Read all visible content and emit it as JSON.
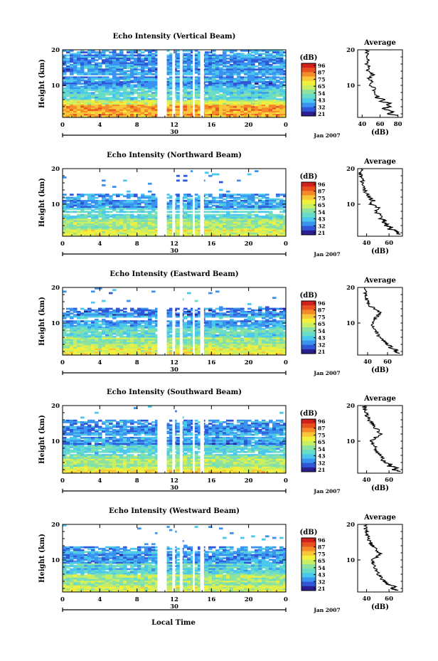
{
  "figure": {
    "xlabel": "Local Time",
    "date_label": "Jan 2007",
    "day_label": "30"
  },
  "colorbar": {
    "unit": "(dB)",
    "ticks": [
      "96",
      "87",
      "75",
      "65",
      "54",
      "43",
      "32",
      "21"
    ],
    "colors": [
      "#2b1f8f",
      "#2f57d6",
      "#3b93f0",
      "#4bc7ee",
      "#69dcc9",
      "#8ee2a0",
      "#c8ee64",
      "#f2f03c",
      "#f8c636",
      "#f48a2a",
      "#e85020",
      "#d2201c"
    ]
  },
  "chart_data": [
    {
      "type": "heatmap",
      "title": "Echo Intensity (Vertical Beam)",
      "ylabel": "Height (km)",
      "x_ticks": [
        "0",
        "4",
        "8",
        "12",
        "16",
        "20",
        "0"
      ],
      "y_ticks": [
        "20",
        "10"
      ],
      "xlim": [
        0,
        24
      ],
      "ylim": [
        1,
        20
      ],
      "gaps_hours": [
        [
          10.2,
          11.2
        ],
        [
          11.8,
          12.1
        ],
        [
          12.6,
          12.9
        ],
        [
          14.0,
          14.2
        ],
        [
          14.8,
          15.2
        ]
      ],
      "cloud_top_km": 20,
      "strong_layer_km": [
        2,
        5
      ],
      "profile": {
        "title": "Average",
        "xlabel": "(dB)",
        "x_ticks": [
          "40",
          "60",
          "80"
        ],
        "xlim": [
          35,
          85
        ],
        "y_ticks": [
          "20",
          "10"
        ],
        "height_km": [
          1.5,
          2,
          2.5,
          3,
          3.5,
          4,
          4.5,
          5,
          5.5,
          6,
          6.5,
          7,
          8,
          9,
          10,
          11,
          12,
          13,
          14,
          15,
          16,
          17,
          18,
          19,
          20
        ],
        "db": [
          80,
          68,
          75,
          70,
          62,
          72,
          66,
          72,
          60,
          66,
          55,
          58,
          52,
          54,
          50,
          51,
          48,
          52,
          46,
          48,
          45,
          47,
          44,
          46,
          45
        ]
      }
    },
    {
      "type": "heatmap",
      "title": "Echo Intensity (Northward Beam)",
      "ylabel": "Height (km)",
      "x_ticks": [
        "0",
        "4",
        "8",
        "12",
        "16",
        "20",
        "0"
      ],
      "y_ticks": [
        "20",
        "10"
      ],
      "xlim": [
        0,
        24
      ],
      "ylim": [
        1,
        20
      ],
      "gaps_hours": [
        [
          10.2,
          11.2
        ],
        [
          11.8,
          12.1
        ],
        [
          12.6,
          12.9
        ],
        [
          14.0,
          14.2
        ],
        [
          14.8,
          15.2
        ]
      ],
      "cloud_top_km": 13,
      "strong_layer_km": [
        1,
        3
      ],
      "profile": {
        "title": "Average",
        "xlabel": "(dB)",
        "x_ticks": [
          "40",
          "60"
        ],
        "xlim": [
          32,
          72
        ],
        "y_ticks": [
          "20",
          "10"
        ],
        "height_km": [
          1.5,
          2,
          2.5,
          3,
          3.5,
          4,
          4.5,
          5,
          5.5,
          6,
          7,
          8,
          9,
          10,
          11,
          12,
          13,
          14,
          15,
          16,
          17,
          18,
          19,
          20
        ],
        "db": [
          70,
          66,
          68,
          60,
          62,
          57,
          58,
          55,
          56,
          52,
          52,
          48,
          50,
          44,
          46,
          42,
          40,
          38,
          37,
          36,
          36,
          35,
          35,
          35
        ]
      }
    },
    {
      "type": "heatmap",
      "title": "Echo Intensity (Eastward Beam)",
      "ylabel": "Height (km)",
      "x_ticks": [
        "0",
        "4",
        "8",
        "12",
        "16",
        "20",
        "0"
      ],
      "y_ticks": [
        "20",
        "10"
      ],
      "xlim": [
        0,
        24
      ],
      "ylim": [
        1,
        20
      ],
      "gaps_hours": [
        [
          10.2,
          11.2
        ],
        [
          11.8,
          12.1
        ],
        [
          12.6,
          12.9
        ],
        [
          14.0,
          14.2
        ],
        [
          14.8,
          15.2
        ]
      ],
      "cloud_top_km": 14.5,
      "strong_layer_km": [
        1,
        3
      ],
      "profile": {
        "title": "Average",
        "xlabel": "(dB)",
        "x_ticks": [
          "40",
          "60"
        ],
        "xlim": [
          30,
          75
        ],
        "y_ticks": [
          "20",
          "10"
        ],
        "height_km": [
          1.5,
          2,
          2.5,
          3,
          3.5,
          4,
          4.5,
          5,
          6,
          7,
          8,
          9,
          10,
          11,
          12,
          13,
          14,
          15,
          16,
          17,
          18,
          19,
          20
        ],
        "db": [
          72,
          66,
          70,
          62,
          64,
          58,
          60,
          56,
          52,
          50,
          48,
          46,
          44,
          46,
          50,
          52,
          47,
          42,
          40,
          39,
          38,
          37,
          37
        ]
      }
    },
    {
      "type": "heatmap",
      "title": "Echo Intensity (Southward Beam)",
      "ylabel": "Height (km)",
      "x_ticks": [
        "0",
        "4",
        "8",
        "12",
        "16",
        "20",
        "0"
      ],
      "y_ticks": [
        "20",
        "10"
      ],
      "xlim": [
        0,
        24
      ],
      "ylim": [
        1,
        20
      ],
      "gaps_hours": [
        [
          10.2,
          11.2
        ],
        [
          11.8,
          12.1
        ],
        [
          12.6,
          12.9
        ],
        [
          14.0,
          14.2
        ],
        [
          14.8,
          15.2
        ]
      ],
      "cloud_top_km": 16,
      "strong_layer_km": [
        1,
        3
      ],
      "profile": {
        "title": "Average",
        "xlabel": "(dB)",
        "x_ticks": [
          "40",
          "60"
        ],
        "xlim": [
          32,
          72
        ],
        "y_ticks": [
          "20",
          "10"
        ],
        "height_km": [
          1.5,
          2,
          2.5,
          3,
          3.5,
          4,
          5,
          6,
          7,
          8,
          9,
          10,
          11,
          12,
          13,
          14,
          15,
          16,
          17,
          18,
          19,
          20
        ],
        "db": [
          70,
          64,
          68,
          60,
          62,
          56,
          54,
          52,
          50,
          48,
          46,
          44,
          48,
          52,
          50,
          47,
          45,
          42,
          40,
          39,
          38,
          38
        ]
      }
    },
    {
      "type": "heatmap",
      "title": "Echo Intensity (Westward Beam)",
      "ylabel": "Height (km)",
      "x_ticks": [
        "0",
        "4",
        "8",
        "12",
        "16",
        "20",
        "0"
      ],
      "y_ticks": [
        "20",
        "10"
      ],
      "xlim": [
        0,
        24
      ],
      "ylim": [
        1,
        20
      ],
      "gaps_hours": [
        [
          10.2,
          11.2
        ],
        [
          11.8,
          12.1
        ],
        [
          12.6,
          12.9
        ],
        [
          14.0,
          14.2
        ],
        [
          14.8,
          15.2
        ]
      ],
      "cloud_top_km": 14,
      "strong_layer_km": [
        1,
        3
      ],
      "profile": {
        "title": "Average",
        "xlabel": "(dB)",
        "x_ticks": [
          "40",
          "60"
        ],
        "xlim": [
          32,
          72
        ],
        "y_ticks": [
          "20",
          "10"
        ],
        "height_km": [
          1.5,
          2,
          2.5,
          3,
          3.5,
          4,
          5,
          6,
          7,
          8,
          9,
          10,
          11,
          12,
          13,
          14,
          15,
          16,
          17,
          18,
          19,
          20
        ],
        "db": [
          68,
          62,
          66,
          60,
          58,
          55,
          53,
          51,
          49,
          47,
          45,
          46,
          50,
          52,
          48,
          45,
          43,
          42,
          41,
          40,
          39,
          39
        ]
      }
    }
  ]
}
